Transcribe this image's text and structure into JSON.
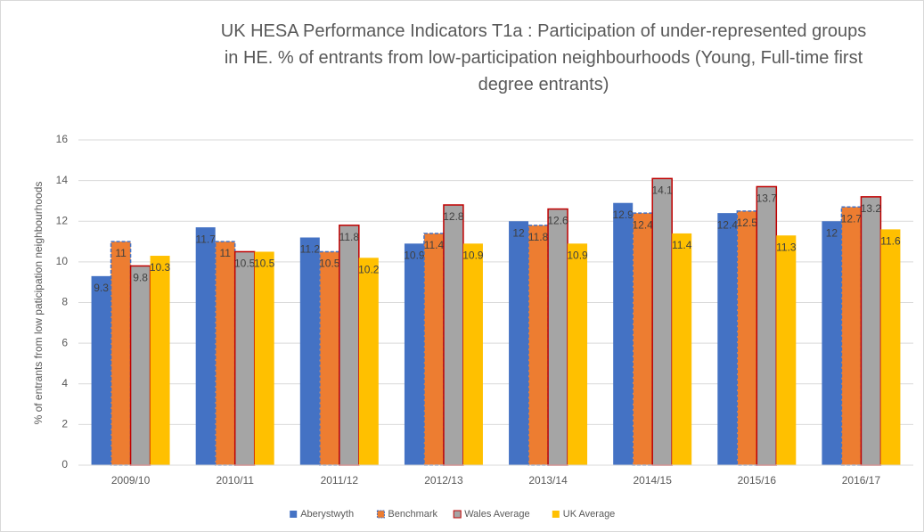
{
  "chart_data": {
    "type": "bar",
    "title": "UK HESA Performance Indicators T1a : Participation of under-represented groups in HE. % of entrants from low-participation neighbourhoods (Young, Full-time first degree entrants)",
    "y_label": "% of entrants from low paticipation neighbourhoods",
    "categories": [
      "2009/10",
      "2010/11",
      "2011/12",
      "2012/13",
      "2013/14",
      "2014/15",
      "2015/16",
      "2016/17"
    ],
    "series": [
      {
        "name": "Aberystwyth",
        "color": "#4472c4",
        "values": [
          9.3,
          11.7,
          11.2,
          10.9,
          12,
          12.9,
          12.4,
          12
        ]
      },
      {
        "name": "Benchmark",
        "color": "#ed7d31",
        "border": "#4472c4",
        "border_style": "dashed",
        "values": [
          11,
          11,
          10.5,
          11.4,
          11.8,
          12.4,
          12.5,
          12.7
        ]
      },
      {
        "name": "Wales Average",
        "color": "#a5a5a5",
        "border": "#c00000",
        "border_style": "solid",
        "values": [
          9.8,
          10.5,
          11.8,
          12.8,
          12.6,
          14.1,
          13.7,
          13.2
        ]
      },
      {
        "name": "UK Average",
        "color": "#ffc000",
        "values": [
          10.3,
          10.5,
          10.2,
          10.9,
          10.9,
          11.4,
          11.3,
          11.6
        ]
      }
    ],
    "ylim": [
      0,
      16
    ],
    "yticks": [
      0,
      2,
      4,
      6,
      8,
      10,
      12,
      14,
      16
    ],
    "grid": true,
    "legend": "bottom"
  }
}
